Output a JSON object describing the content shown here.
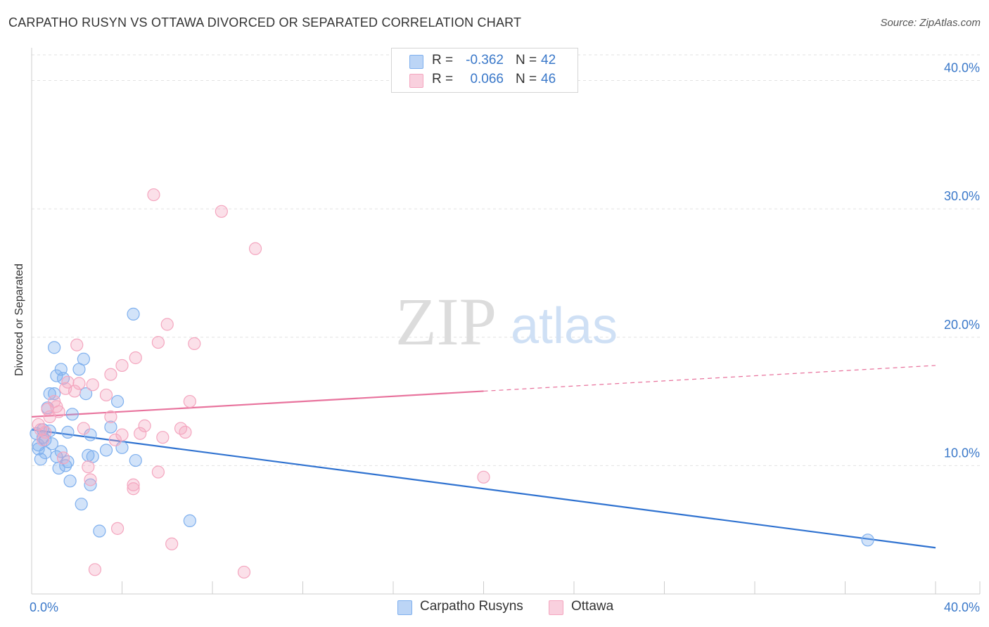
{
  "header": {
    "title": "CARPATHO RUSYN VS OTTAWA DIVORCED OR SEPARATED CORRELATION CHART",
    "source": "Source: ZipAtlas.com"
  },
  "watermark": {
    "zip": "ZIP",
    "atlas": "atlas"
  },
  "legend": {
    "rows": [
      {
        "r_label": "R =",
        "r_value": "-0.362",
        "n_label": "N =",
        "n_value": "42",
        "color": "#7fb0ee"
      },
      {
        "r_label": "R =",
        "r_value": "0.066",
        "n_label": "N =",
        "n_value": "46",
        "color": "#f4a6bf"
      }
    ]
  },
  "chart_data": {
    "type": "scatter",
    "title": "CARPATHO RUSYN VS OTTAWA DIVORCED OR SEPARATED CORRELATION CHART",
    "xlabel": "",
    "ylabel": "Divorced or Separated",
    "xlim": [
      0,
      40
    ],
    "ylim": [
      0,
      42
    ],
    "x_tick_labels": [
      "0.0%",
      "40.0%"
    ],
    "y_ticks": [
      10,
      20,
      30,
      40
    ],
    "y_tick_labels": [
      "10.0%",
      "20.0%",
      "30.0%",
      "40.0%"
    ],
    "grid": true,
    "legend_position": "top-center",
    "series": [
      {
        "name": "Carpatho Rusyns",
        "color": "#7fb0ee",
        "line_color": "#2f72d0",
        "trend": {
          "x": [
            0,
            40
          ],
          "y": [
            12.8,
            3.6
          ],
          "solid_until": 40
        },
        "points": [
          {
            "x": 0.2,
            "y": 12.5
          },
          {
            "x": 0.3,
            "y": 11.6
          },
          {
            "x": 0.3,
            "y": 11.3
          },
          {
            "x": 0.4,
            "y": 10.5
          },
          {
            "x": 0.5,
            "y": 12.2
          },
          {
            "x": 0.5,
            "y": 12.8
          },
          {
            "x": 0.6,
            "y": 11.0
          },
          {
            "x": 0.6,
            "y": 12.0
          },
          {
            "x": 0.7,
            "y": 14.5
          },
          {
            "x": 0.8,
            "y": 15.6
          },
          {
            "x": 0.8,
            "y": 12.7
          },
          {
            "x": 0.9,
            "y": 11.7
          },
          {
            "x": 1.0,
            "y": 15.6
          },
          {
            "x": 1.0,
            "y": 19.2
          },
          {
            "x": 1.1,
            "y": 17.0
          },
          {
            "x": 1.1,
            "y": 10.7
          },
          {
            "x": 1.2,
            "y": 9.8
          },
          {
            "x": 1.3,
            "y": 17.5
          },
          {
            "x": 1.3,
            "y": 11.1
          },
          {
            "x": 1.4,
            "y": 16.8
          },
          {
            "x": 1.5,
            "y": 10.0
          },
          {
            "x": 1.6,
            "y": 12.6
          },
          {
            "x": 1.6,
            "y": 10.3
          },
          {
            "x": 1.7,
            "y": 8.8
          },
          {
            "x": 1.8,
            "y": 14.0
          },
          {
            "x": 2.1,
            "y": 17.5
          },
          {
            "x": 2.2,
            "y": 7.0
          },
          {
            "x": 2.3,
            "y": 18.3
          },
          {
            "x": 2.4,
            "y": 15.6
          },
          {
            "x": 2.5,
            "y": 10.8
          },
          {
            "x": 2.6,
            "y": 8.5
          },
          {
            "x": 2.6,
            "y": 12.4
          },
          {
            "x": 2.7,
            "y": 10.7
          },
          {
            "x": 3.0,
            "y": 4.9
          },
          {
            "x": 3.3,
            "y": 11.2
          },
          {
            "x": 3.5,
            "y": 13.0
          },
          {
            "x": 3.8,
            "y": 15.0
          },
          {
            "x": 4.6,
            "y": 10.4
          },
          {
            "x": 4.0,
            "y": 11.4
          },
          {
            "x": 4.5,
            "y": 21.8
          },
          {
            "x": 7.0,
            "y": 5.7
          },
          {
            "x": 37.0,
            "y": 4.2
          }
        ]
      },
      {
        "name": "Ottawa",
        "color": "#f4a6bf",
        "line_color": "#e8739d",
        "trend": {
          "x": [
            0,
            40
          ],
          "y": [
            13.8,
            17.8
          ],
          "solid_until": 20
        },
        "points": [
          {
            "x": 0.3,
            "y": 13.2
          },
          {
            "x": 0.4,
            "y": 12.8
          },
          {
            "x": 0.5,
            "y": 12.0
          },
          {
            "x": 0.6,
            "y": 12.6
          },
          {
            "x": 0.7,
            "y": 14.4
          },
          {
            "x": 0.8,
            "y": 13.8
          },
          {
            "x": 1.0,
            "y": 15.0
          },
          {
            "x": 1.1,
            "y": 14.6
          },
          {
            "x": 1.2,
            "y": 14.2
          },
          {
            "x": 1.4,
            "y": 10.6
          },
          {
            "x": 1.5,
            "y": 16.0
          },
          {
            "x": 1.6,
            "y": 16.5
          },
          {
            "x": 1.9,
            "y": 15.8
          },
          {
            "x": 2.0,
            "y": 19.4
          },
          {
            "x": 2.1,
            "y": 16.4
          },
          {
            "x": 2.3,
            "y": 12.9
          },
          {
            "x": 2.5,
            "y": 9.9
          },
          {
            "x": 2.6,
            "y": 8.9
          },
          {
            "x": 2.7,
            "y": 16.3
          },
          {
            "x": 2.8,
            "y": 1.9
          },
          {
            "x": 3.3,
            "y": 15.5
          },
          {
            "x": 3.7,
            "y": 12.0
          },
          {
            "x": 3.5,
            "y": 17.1
          },
          {
            "x": 4.0,
            "y": 17.8
          },
          {
            "x": 4.6,
            "y": 18.4
          },
          {
            "x": 4.0,
            "y": 12.4
          },
          {
            "x": 4.5,
            "y": 8.5
          },
          {
            "x": 4.5,
            "y": 8.2
          },
          {
            "x": 3.5,
            "y": 13.8
          },
          {
            "x": 3.8,
            "y": 5.1
          },
          {
            "x": 4.8,
            "y": 12.5
          },
          {
            "x": 5.0,
            "y": 13.1
          },
          {
            "x": 5.4,
            "y": 31.1
          },
          {
            "x": 5.6,
            "y": 9.5
          },
          {
            "x": 5.6,
            "y": 19.6
          },
          {
            "x": 5.8,
            "y": 12.2
          },
          {
            "x": 6.0,
            "y": 21.0
          },
          {
            "x": 6.2,
            "y": 3.9
          },
          {
            "x": 6.6,
            "y": 12.9
          },
          {
            "x": 6.8,
            "y": 12.6
          },
          {
            "x": 7.0,
            "y": 15.0
          },
          {
            "x": 7.2,
            "y": 19.5
          },
          {
            "x": 8.4,
            "y": 29.8
          },
          {
            "x": 9.4,
            "y": 1.7
          },
          {
            "x": 9.9,
            "y": 26.9
          },
          {
            "x": 20.0,
            "y": 9.1
          }
        ]
      }
    ]
  },
  "bottom_legend": [
    {
      "label": "Carpatho Rusyns",
      "color": "#7fb0ee"
    },
    {
      "label": "Ottawa",
      "color": "#f4a6bf"
    }
  ]
}
